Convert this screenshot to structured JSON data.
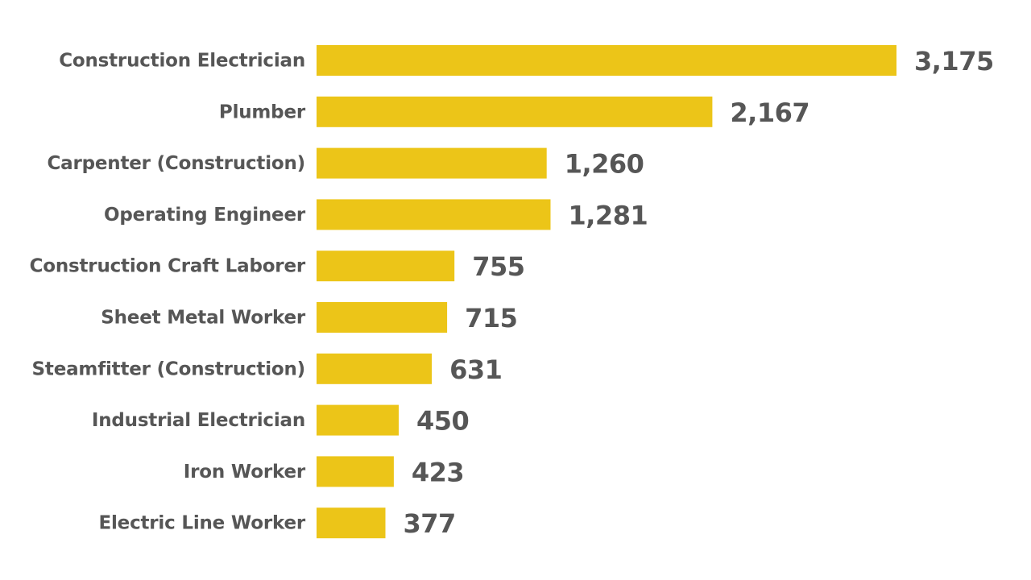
{
  "chart_data": {
    "type": "bar",
    "orientation": "horizontal",
    "categories": [
      "Construction Electrician",
      "Plumber",
      "Carpenter (Construction)",
      "Operating Engineer",
      "Construction Craft Laborer",
      "Sheet Metal Worker",
      "Steamfitter (Construction)",
      "Industrial Electrician",
      "Iron Worker",
      "Electric Line Worker"
    ],
    "values": [
      3175,
      2167,
      1260,
      1281,
      755,
      715,
      631,
      450,
      423,
      377
    ],
    "value_labels": [
      "3,175",
      "2,167",
      "1,260",
      "1,281",
      "755",
      "715",
      "631",
      "450",
      "423",
      "377"
    ],
    "title": "",
    "xlabel": "",
    "ylabel": "",
    "xlim": [
      0,
      3175
    ],
    "grid": false,
    "legend": "none",
    "colors": {
      "bar": "#ECC518",
      "text": "#565656",
      "background": "#FFFFFF"
    }
  }
}
